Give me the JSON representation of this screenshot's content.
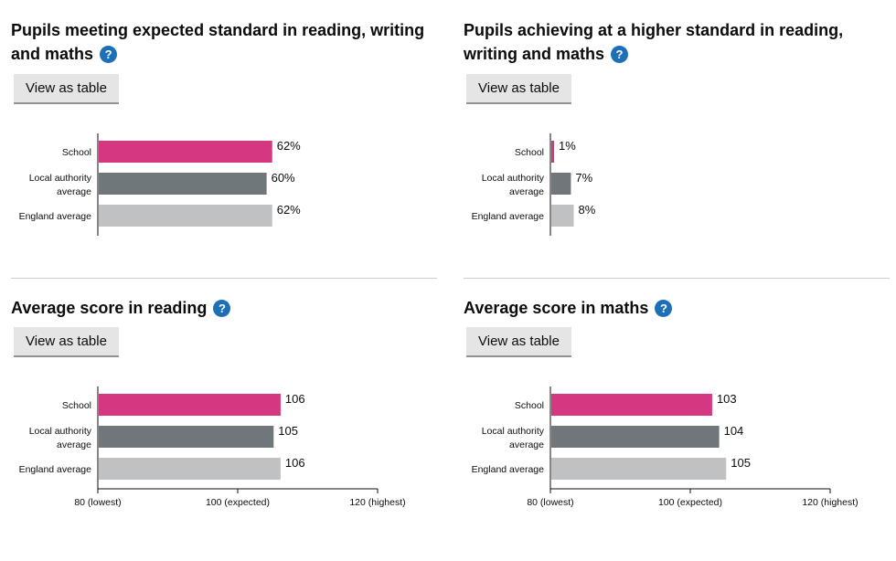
{
  "panels": [
    {
      "title": "Pupils meeting expected standard in reading, writing and maths",
      "help_icon": "?",
      "button_label": "View as table",
      "chart_data": {
        "type": "bar",
        "orientation": "horizontal",
        "categories": [
          [
            "School"
          ],
          [
            "Local authority",
            "average"
          ],
          [
            "England average"
          ]
        ],
        "values": [
          62,
          60,
          62
        ],
        "value_suffix": "%",
        "xlim": [
          0,
          100
        ],
        "axis_ticks": [],
        "colors": [
          "#d53880",
          "#6f777b",
          "#bfc1c3"
        ]
      }
    },
    {
      "title": "Pupils achieving at a higher standard in reading, writing and maths",
      "help_icon": "?",
      "button_label": "View as table",
      "chart_data": {
        "type": "bar",
        "orientation": "horizontal",
        "categories": [
          [
            "School"
          ],
          [
            "Local authority",
            "average"
          ],
          [
            "England average"
          ]
        ],
        "values": [
          1,
          7,
          8
        ],
        "value_suffix": "%",
        "xlim": [
          0,
          100
        ],
        "axis_ticks": [],
        "colors": [
          "#d53880",
          "#6f777b",
          "#bfc1c3"
        ]
      }
    },
    {
      "title": "Average score in reading",
      "help_icon": "?",
      "button_label": "View as table",
      "chart_data": {
        "type": "bar",
        "orientation": "horizontal",
        "categories": [
          [
            "School"
          ],
          [
            "Local authority",
            "average"
          ],
          [
            "England average"
          ]
        ],
        "values": [
          106,
          105,
          106
        ],
        "value_suffix": "",
        "xlim": [
          80,
          120
        ],
        "axis_ticks": [
          {
            "value": 80,
            "label": "80 (lowest)"
          },
          {
            "value": 100,
            "label": "100 (expected)"
          },
          {
            "value": 120,
            "label": "120 (highest)"
          }
        ],
        "colors": [
          "#d53880",
          "#6f777b",
          "#bfc1c3"
        ]
      }
    },
    {
      "title": "Average score in maths",
      "help_icon": "?",
      "button_label": "View as table",
      "chart_data": {
        "type": "bar",
        "orientation": "horizontal",
        "categories": [
          [
            "School"
          ],
          [
            "Local authority",
            "average"
          ],
          [
            "England average"
          ]
        ],
        "values": [
          103,
          104,
          105
        ],
        "value_suffix": "",
        "xlim": [
          80,
          120
        ],
        "axis_ticks": [
          {
            "value": 80,
            "label": "80 (lowest)"
          },
          {
            "value": 100,
            "label": "100 (expected)"
          },
          {
            "value": 120,
            "label": "120 (highest)"
          }
        ],
        "colors": [
          "#d53880",
          "#6f777b",
          "#bfc1c3"
        ]
      }
    }
  ]
}
